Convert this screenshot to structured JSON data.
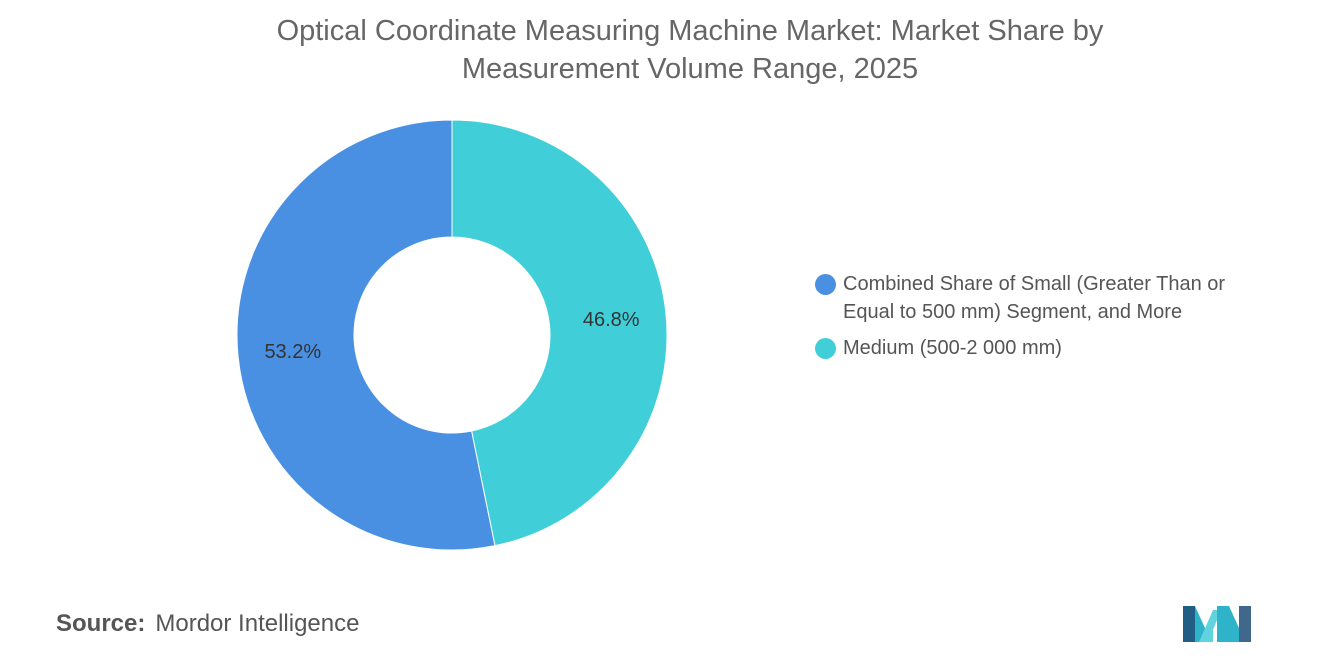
{
  "chart_data": {
    "type": "pie",
    "variant": "donut",
    "title": "Optical Coordinate Measuring Machine Market: Market Share by Measurement Volume Range, 2025",
    "title_lines": [
      "Optical Coordinate Measuring Machine Market: Market Share by",
      "Measurement Volume Range, 2025"
    ],
    "series": [
      {
        "name": "Combined Share of Small (Greater Than or Equal to 500 mm) Segment, and More",
        "legend_lines": [
          "Combined Share of Small (Greater Than or",
          "Equal to 500 mm) Segment, and More"
        ],
        "value": 53.2,
        "label": "53.2%",
        "color": "#4a90e2"
      },
      {
        "name": "Medium (500-2 000 mm)",
        "legend_lines": [
          "Medium (500-2 000 mm)"
        ],
        "value": 46.8,
        "label": "46.8%",
        "color": "#40cfd9"
      }
    ],
    "legend_position": "right"
  },
  "source": {
    "label": "Source:",
    "value": "Mordor Intelligence"
  },
  "logo_icon": "mordor-intelligence-logo-icon"
}
